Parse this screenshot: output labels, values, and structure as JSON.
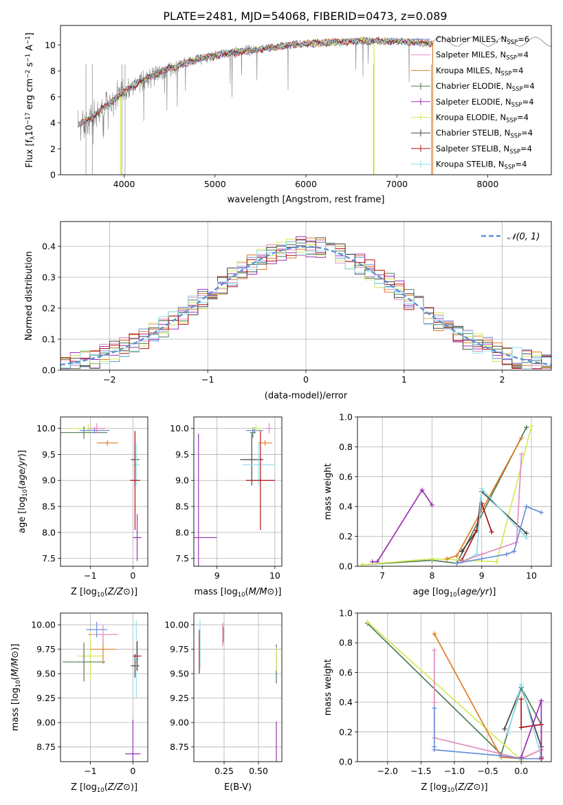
{
  "title": "PLATE=2481, MJD=54068, FIBERID=0473, z=0.089",
  "colors": {
    "Chabrier MILES": "#6a8fd8",
    "Salpeter MILES": "#e38cc0",
    "Kroupa MILES": "#e07b22",
    "Chabrier ELODIE": "#4e7a57",
    "Salpeter ELODIE": "#9b30b5",
    "Kroupa ELODIE": "#d4ea56",
    "Chabrier STELIB": "#444444",
    "Salpeter STELIB": "#b30f12",
    "Kroupa STELIB": "#8fe0ea",
    "data": "#808080",
    "normal": "#5b8fd6"
  },
  "chart_data": [
    {
      "id": "spectrum",
      "type": "line",
      "xlabel": "wavelength [Angstrom, rest frame]",
      "ylabel_parts": [
        "Flux [f",
        "λ",
        "10",
        "−17",
        " erg cm",
        "−2",
        " s",
        "−1",
        " A",
        "−1",
        "]"
      ],
      "xlim": [
        3300,
        8700
      ],
      "ylim": [
        0,
        11.5
      ],
      "xticks": [
        4000,
        5000,
        6000,
        7000,
        8000
      ],
      "yticks": [
        0,
        2,
        4,
        6,
        8,
        10
      ],
      "grid": false,
      "legend_position": "bottom-right",
      "continuum_x": [
        3500,
        3650,
        3800,
        3950,
        4100,
        4300,
        4500,
        4800,
        5100,
        5400,
        5700,
        6000,
        6300,
        6600,
        6900,
        7200,
        7400
      ],
      "continuum_y": [
        3.9,
        4.4,
        5.3,
        6.1,
        6.9,
        7.6,
        8.2,
        8.9,
        9.3,
        9.6,
        9.9,
        10.1,
        10.2,
        10.3,
        10.3,
        10.2,
        10.1
      ],
      "legend": [
        {
          "label": "Chabrier MILES",
          "sub": "SSP",
          "n": "6"
        },
        {
          "label": "Salpeter MILES",
          "sub": "SSP",
          "n": "4"
        },
        {
          "label": "Kroupa MILES",
          "sub": "SSP",
          "n": "4"
        },
        {
          "label": "Chabrier ELODIE",
          "sub": "SSP",
          "n": "4"
        },
        {
          "label": "Salpeter ELODIE",
          "sub": "SSP",
          "n": "4"
        },
        {
          "label": "Kroupa ELODIE",
          "sub": "SSP",
          "n": "4"
        },
        {
          "label": "Chabrier STELIB",
          "sub": "SSP",
          "n": "4"
        },
        {
          "label": "Salpeter STELIB",
          "sub": "SSP",
          "n": "4"
        },
        {
          "label": "Kroupa STELIB",
          "sub": "SSP",
          "n": "4"
        }
      ]
    },
    {
      "id": "residuals",
      "type": "histogram",
      "xlabel": "(data-model)/error",
      "ylabel": "Normed distribution",
      "xlim": [
        -2.5,
        2.5
      ],
      "ylim": [
        0,
        0.48
      ],
      "xticks": [
        -2,
        -1,
        0,
        1,
        2
      ],
      "yticks": [
        0.0,
        0.1,
        0.2,
        0.3,
        0.4
      ],
      "grid": true,
      "bin_width": 0.1,
      "legend": {
        "label": "𝒩(0, 1)",
        "position": "top-right"
      }
    },
    {
      "id": "age-vs-Z",
      "type": "errorbar",
      "xlabel": "Z [log10(Z/Z⊙)]",
      "ylabel": "age  [log10(age/yr)]",
      "xlim": [
        -1.7,
        0.35
      ],
      "ylim": [
        7.35,
        10.22
      ],
      "xticks": [
        -1,
        0
      ],
      "yticks": [
        7.5,
        8.0,
        8.5,
        9.0,
        9.5,
        10.0
      ],
      "grid": true,
      "points": [
        {
          "model": "Kroupa ELODIE",
          "x": -1.05,
          "xerr": 0.45,
          "y": 10.0,
          "yerr": 0.08
        },
        {
          "model": "Chabrier ELODIE",
          "x": -1.15,
          "xerr": 0.55,
          "y": 9.92,
          "yerr": 0.12
        },
        {
          "model": "Chabrier MILES",
          "x": -0.9,
          "xerr": 0.35,
          "y": 9.96,
          "yerr": 0.06
        },
        {
          "model": "Salpeter MILES",
          "x": -0.85,
          "xerr": 0.2,
          "y": 10.0,
          "yerr": 0.1
        },
        {
          "model": "Kroupa MILES",
          "x": -0.6,
          "xerr": 0.25,
          "y": 9.72,
          "yerr": 0.05
        },
        {
          "model": "Salpeter ELODIE",
          "x": 0.1,
          "xerr": 0.1,
          "y": 7.9,
          "yerr": 0.45
        },
        {
          "model": "Chabrier STELIB",
          "x": 0.05,
          "xerr": 0.1,
          "y": 9.4,
          "yerr": 0.5
        },
        {
          "model": "Kroupa STELIB",
          "x": 0.08,
          "xerr": 0.08,
          "y": 9.3,
          "yerr": 0.4
        },
        {
          "model": "Salpeter STELIB",
          "x": 0.05,
          "xerr": 0.12,
          "y": 9.0,
          "yerr": 0.95
        }
      ]
    },
    {
      "id": "age-vs-mass",
      "type": "errorbar",
      "xlabel": "mass [log10(M/M⊙)]",
      "xlim": [
        8.6,
        10.12
      ],
      "ylim": [
        7.35,
        10.22
      ],
      "xticks": [
        9,
        10
      ],
      "yticks": [
        7.5,
        8.0,
        8.5,
        9.0,
        9.5,
        10.0
      ],
      "grid": true,
      "points": [
        {
          "model": "Salpeter ELODIE",
          "x": 8.68,
          "xerr": 0.32,
          "y": 7.9,
          "yerr": 2.0
        },
        {
          "model": "Chabrier STELIB",
          "x": 9.6,
          "xerr": 0.2,
          "y": 9.4,
          "yerr": 0.5
        },
        {
          "model": "Kroupa STELIB",
          "x": 9.72,
          "xerr": 0.28,
          "y": 9.3,
          "yerr": 0.4
        },
        {
          "model": "Salpeter STELIB",
          "x": 9.75,
          "xerr": 0.25,
          "y": 9.0,
          "yerr": 0.95
        },
        {
          "model": "Chabrier ELODIE",
          "x": 9.62,
          "xerr": 0.05,
          "y": 9.92,
          "yerr": 0.1
        },
        {
          "model": "Chabrier MILES",
          "x": 9.65,
          "xerr": 0.15,
          "y": 9.96,
          "yerr": 0.06
        },
        {
          "model": "Kroupa ELODIE",
          "x": 9.67,
          "xerr": 0.1,
          "y": 10.0,
          "yerr": 0.08
        },
        {
          "model": "Kroupa MILES",
          "x": 9.83,
          "xerr": 0.12,
          "y": 9.72,
          "yerr": 0.05
        },
        {
          "model": "Salpeter MILES",
          "x": 9.9,
          "xerr": 0.05,
          "y": 10.0,
          "yerr": 0.1
        }
      ]
    },
    {
      "id": "weight-vs-age",
      "type": "line",
      "xlabel": "age  [log10(age/yr)]",
      "ylabel": "mass weight",
      "xlim": [
        6.5,
        10.4
      ],
      "ylim": [
        0,
        1.0
      ],
      "xticks": [
        7,
        8,
        9,
        10
      ],
      "yticks": [
        0.0,
        0.2,
        0.4,
        0.6,
        0.8,
        1.0
      ],
      "grid": true,
      "series": [
        {
          "model": "Salpeter ELODIE",
          "x": [
            6.8,
            6.9,
            7.8,
            8.0
          ],
          "y": [
            0.03,
            0.03,
            0.51,
            0.41
          ]
        },
        {
          "model": "Chabrier ELODIE",
          "x": [
            6.6,
            8.0,
            8.5,
            9.9
          ],
          "y": [
            0.01,
            0.04,
            0.02,
            0.93
          ]
        },
        {
          "model": "Kroupa ELODIE",
          "x": [
            6.6,
            8.0,
            9.3,
            10.0
          ],
          "y": [
            0.01,
            0.05,
            0.03,
            0.94
          ]
        },
        {
          "model": "Kroupa MILES",
          "x": [
            8.3,
            8.5,
            9.8
          ],
          "y": [
            0.05,
            0.07,
            0.86
          ]
        },
        {
          "model": "Chabrier STELIB",
          "x": [
            8.6,
            8.9,
            9.0,
            9.9
          ],
          "y": [
            0.1,
            0.24,
            0.5,
            0.22
          ]
        },
        {
          "model": "Salpeter STELIB",
          "x": [
            8.6,
            8.9,
            9.0,
            9.2
          ],
          "y": [
            0.04,
            0.24,
            0.42,
            0.23
          ]
        },
        {
          "model": "Kroupa STELIB",
          "x": [
            8.6,
            8.9,
            9.0,
            9.9
          ],
          "y": [
            0.03,
            0.08,
            0.52,
            0.19
          ]
        },
        {
          "model": "Salpeter MILES",
          "x": [
            8.5,
            9.0,
            9.7,
            9.8
          ],
          "y": [
            0.02,
            0.08,
            0.16,
            0.75
          ]
        },
        {
          "model": "Chabrier MILES",
          "x": [
            8.5,
            9.0,
            9.5,
            9.65,
            9.9,
            10.2
          ],
          "y": [
            0.02,
            0.05,
            0.08,
            0.1,
            0.4,
            0.36
          ]
        }
      ]
    },
    {
      "id": "mass-vs-Z",
      "type": "errorbar",
      "xlabel": "Z [log10(Z/Z⊙)]",
      "ylabel": "mass [log10(M/M⊙)]",
      "xlim": [
        -1.7,
        0.35
      ],
      "ylim": [
        8.6,
        10.12
      ],
      "xticks": [
        -1,
        0
      ],
      "yticks": [
        8.75,
        9.0,
        9.25,
        9.5,
        9.75,
        10.0
      ],
      "grid": true,
      "points": [
        {
          "model": "Kroupa ELODIE",
          "x": -1.0,
          "xerr": 0.3,
          "y": 9.68,
          "yerr": 0.25
        },
        {
          "model": "Chabrier ELODIE",
          "x": -1.15,
          "xerr": 0.5,
          "y": 9.62,
          "yerr": 0.2
        },
        {
          "model": "Kroupa MILES",
          "x": -0.7,
          "xerr": 0.3,
          "y": 9.75,
          "yerr": 0.15
        },
        {
          "model": "Salpeter MILES",
          "x": -0.7,
          "xerr": 0.35,
          "y": 9.9,
          "yerr": 0.1
        },
        {
          "model": "Chabrier MILES",
          "x": -0.85,
          "xerr": 0.25,
          "y": 9.95,
          "yerr": 0.08
        },
        {
          "model": "Salpeter ELODIE",
          "x": 0.0,
          "xerr": 0.18,
          "y": 8.68,
          "yerr": 0.35
        },
        {
          "model": "Chabrier STELIB",
          "x": 0.05,
          "xerr": 0.1,
          "y": 9.58,
          "yerr": 0.12
        },
        {
          "model": "Kroupa STELIB",
          "x": 0.08,
          "xerr": 0.08,
          "y": 9.65,
          "yerr": 0.4
        },
        {
          "model": "Salpeter STELIB",
          "x": 0.1,
          "xerr": 0.1,
          "y": 9.68,
          "yerr": 0.15
        }
      ]
    },
    {
      "id": "mass-vs-EBV",
      "type": "errorbar",
      "xlabel": "E(B-V)",
      "xlim": [
        0.03,
        0.67
      ],
      "ylim": [
        8.6,
        10.12
      ],
      "xticks": [
        0.25,
        0.5
      ],
      "yticks": [
        8.75,
        9.0,
        9.25,
        9.5,
        9.75,
        10.0
      ],
      "grid": true,
      "points": [
        {
          "model": "Salpeter ELODIE",
          "x": 0.63,
          "xerr": 0.0,
          "y": 8.68,
          "yerr": 0.33
        },
        {
          "model": "Chabrier ELODIE",
          "x": 0.63,
          "xerr": 0.0,
          "y": 9.6,
          "yerr": 0.2
        },
        {
          "model": "Kroupa ELODIE",
          "x": 0.63,
          "xerr": 0.0,
          "y": 9.65,
          "yerr": 0.12
        },
        {
          "model": "Chabrier MILES",
          "x": 0.24,
          "xerr": 0.0,
          "y": 9.9,
          "yerr": 0.1
        },
        {
          "model": "Salpeter MILES",
          "x": 0.24,
          "xerr": 0.0,
          "y": 9.9,
          "yerr": 0.12
        },
        {
          "model": "Kroupa MILES",
          "x": 0.245,
          "xerr": 0.0,
          "y": 9.9,
          "yerr": 0.08
        },
        {
          "model": "Chabrier STELIB",
          "x": 0.07,
          "xerr": 0.0,
          "y": 9.75,
          "yerr": 0.2
        },
        {
          "model": "Salpeter STELIB",
          "x": 0.07,
          "xerr": 0.0,
          "y": 9.7,
          "yerr": 0.2
        },
        {
          "model": "Kroupa STELIB",
          "x": 0.075,
          "xerr": 0.0,
          "y": 9.8,
          "yerr": 0.25
        }
      ]
    },
    {
      "id": "weight-vs-Z",
      "type": "line",
      "xlabel": "Z [log10(Z/Z⊙)]",
      "ylabel": "mass weight",
      "xlim": [
        -2.45,
        0.45
      ],
      "ylim": [
        0,
        1.0
      ],
      "xticks": [
        -2.0,
        -1.5,
        -1.0,
        -0.5,
        0.0
      ],
      "yticks": [
        0.0,
        0.2,
        0.4,
        0.6,
        0.8,
        1.0
      ],
      "grid": true,
      "series": [
        {
          "model": "Chabrier ELODIE",
          "x": [
            -2.3,
            -0.3,
            0.0,
            0.3
          ],
          "y": [
            0.93,
            0.05,
            0.5,
            0.25
          ]
        },
        {
          "model": "Kroupa ELODIE",
          "x": [
            -2.3,
            0.0
          ],
          "y": [
            0.94,
            0.01
          ]
        },
        {
          "model": "Kroupa MILES",
          "x": [
            -1.3,
            -0.3,
            0.0,
            0.3
          ],
          "y": [
            0.86,
            0.03,
            0.02,
            0.08
          ]
        },
        {
          "model": "Salpeter MILES",
          "x": [
            -1.3,
            -1.3,
            -1.3,
            0.0,
            0.3
          ],
          "y": [
            0.75,
            0.4,
            0.16,
            0.02,
            0.08
          ]
        },
        {
          "model": "Chabrier MILES",
          "x": [
            -1.3,
            -1.3,
            -1.3,
            -0.3,
            0.0,
            0.3
          ],
          "y": [
            0.36,
            0.1,
            0.08,
            0.04,
            0.02,
            0.02
          ]
        },
        {
          "model": "Chabrier STELIB",
          "x": [
            -0.25,
            0.0,
            0.3
          ],
          "y": [
            0.22,
            0.5,
            0.1
          ]
        },
        {
          "model": "Salpeter STELIB",
          "x": [
            0.0,
            0.0,
            0.3,
            0.3
          ],
          "y": [
            0.42,
            0.23,
            0.25,
            0.02
          ]
        },
        {
          "model": "Kroupa STELIB",
          "x": [
            -0.2,
            0.0,
            0.3
          ],
          "y": [
            0.19,
            0.52,
            0.03
          ]
        },
        {
          "model": "Salpeter ELODIE",
          "x": [
            0.0,
            0.3,
            0.3
          ],
          "y": [
            0.03,
            0.41,
            0.03
          ]
        }
      ]
    }
  ]
}
